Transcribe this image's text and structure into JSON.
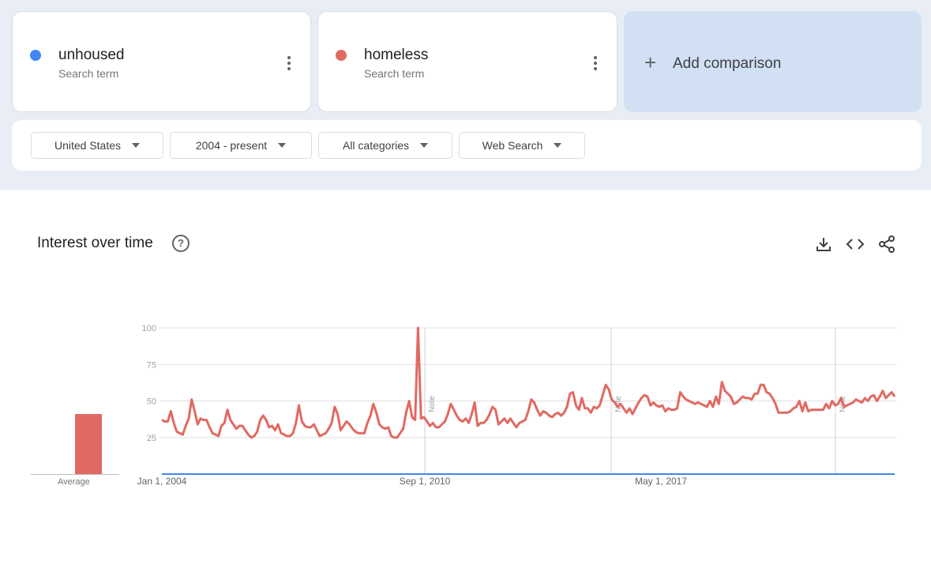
{
  "terms": [
    {
      "name": "unhoused",
      "sub": "Search term",
      "color": "#4285f4"
    },
    {
      "name": "homeless",
      "sub": "Search term",
      "color": "#e06a62"
    }
  ],
  "add_comparison": {
    "label": "Add comparison",
    "icon": "plus-icon"
  },
  "filters": {
    "region": "United States",
    "time": "2004 - present",
    "category": "All categories",
    "property": "Web Search"
  },
  "section": {
    "title": "Interest over time",
    "help_icon": "help-icon"
  },
  "toolbar": {
    "icons": [
      "download-icon",
      "embed-code-icon",
      "share-icon"
    ]
  },
  "average": {
    "label": "Average",
    "unhoused": 0,
    "homeless": 41
  },
  "chart_data": {
    "type": "line",
    "ylim": [
      0,
      100
    ],
    "yticks": [
      25,
      50,
      75,
      100
    ],
    "xticks": [
      "Jan 1, 2004",
      "Sep 1, 2010",
      "May 1, 2017"
    ],
    "notes": [
      "Note",
      "Note",
      "Note"
    ],
    "grid": true,
    "series": [
      {
        "name": "unhoused",
        "color": "#4285f4",
        "values": [
          0,
          0,
          0,
          0,
          0,
          0,
          0,
          0,
          0,
          0,
          0,
          0,
          0,
          0,
          0,
          0,
          0,
          0,
          0,
          0,
          0,
          0,
          0,
          0,
          0,
          0,
          0,
          0,
          0,
          0,
          0,
          0,
          0,
          0,
          0,
          0,
          0,
          0,
          0,
          0,
          0,
          0,
          0,
          0,
          0,
          0,
          0,
          0,
          0,
          0,
          0,
          0,
          0,
          0,
          0,
          0,
          0,
          0,
          0,
          0,
          0,
          0,
          0,
          0,
          0,
          0,
          0,
          0,
          0,
          0,
          0,
          0,
          0,
          0,
          0,
          0,
          0,
          0,
          0,
          0,
          0,
          0,
          0,
          0,
          0,
          0,
          0,
          0,
          0,
          0,
          0,
          0,
          0,
          0,
          0,
          0,
          0,
          0,
          0,
          0,
          0,
          0,
          0,
          0,
          0,
          0,
          0,
          0,
          0,
          0,
          0,
          0,
          0,
          0,
          0,
          0,
          0,
          0,
          0,
          0,
          0,
          0,
          0,
          0,
          0,
          0,
          0,
          0,
          0,
          0,
          0,
          0,
          0,
          0,
          0,
          0,
          0,
          0,
          0,
          0,
          0,
          0,
          0,
          0,
          0,
          0,
          0,
          0,
          0,
          0,
          0,
          0,
          0,
          0,
          0,
          0,
          0,
          0,
          0,
          0,
          0,
          0,
          0,
          0,
          0,
          0,
          0,
          0,
          0,
          0,
          0,
          0,
          0,
          0,
          0,
          0,
          0,
          0,
          0,
          0,
          0,
          0,
          0,
          0,
          0,
          0,
          0,
          0,
          0,
          0,
          0,
          0,
          0,
          0,
          0,
          0,
          0,
          0,
          0,
          0,
          0,
          0,
          0,
          0,
          0,
          0,
          0,
          0,
          0,
          0,
          0,
          0,
          0,
          0,
          0,
          0,
          0,
          0,
          0,
          0,
          0,
          0,
          0,
          0,
          0,
          0,
          0,
          0,
          0,
          0,
          0,
          0,
          0,
          0,
          0,
          0,
          0,
          0,
          0,
          0,
          0
        ]
      },
      {
        "name": "homeless",
        "color": "#e06a62",
        "values": [
          37,
          36,
          36,
          43,
          35,
          29,
          28,
          27,
          33,
          38,
          51,
          43,
          34,
          38,
          37,
          37,
          32,
          28,
          27,
          26,
          33,
          35,
          44,
          37,
          34,
          31,
          33,
          33,
          30,
          27,
          25,
          26,
          29,
          37,
          40,
          37,
          32,
          33,
          30,
          34,
          28,
          27,
          26,
          26,
          28,
          35,
          47,
          36,
          33,
          32,
          32,
          34,
          30,
          26,
          27,
          28,
          31,
          35,
          46,
          41,
          30,
          33,
          36,
          34,
          31,
          29,
          28,
          28,
          28,
          35,
          40,
          48,
          42,
          34,
          32,
          31,
          32,
          26,
          25,
          25,
          28,
          31,
          42,
          50,
          39,
          37,
          100,
          38,
          39,
          36,
          33,
          35,
          32,
          32,
          34,
          36,
          41,
          48,
          44,
          40,
          37,
          36,
          38,
          35,
          41,
          49,
          33,
          35,
          35,
          37,
          41,
          46,
          44,
          34,
          36,
          38,
          35,
          38,
          35,
          32,
          35,
          36,
          37,
          43,
          51,
          49,
          44,
          40,
          43,
          42,
          40,
          39,
          41,
          42,
          40,
          42,
          46,
          55,
          56,
          47,
          44,
          52,
          45,
          45,
          42,
          46,
          45,
          47,
          54,
          61,
          58,
          51,
          49,
          46,
          48,
          45,
          42,
          45,
          41,
          45,
          49,
          52,
          54,
          53,
          47,
          49,
          47,
          46,
          47,
          43,
          45,
          44,
          44,
          45,
          56,
          53,
          51,
          50,
          49,
          48,
          49,
          48,
          47,
          46,
          50,
          46,
          53,
          48,
          63,
          57,
          55,
          53,
          48,
          49,
          51,
          53,
          52,
          52,
          51,
          55,
          55,
          61,
          61,
          56,
          55,
          52,
          48,
          42,
          42,
          42,
          42,
          43,
          45,
          46,
          50,
          43,
          49,
          43,
          44,
          44,
          44,
          44,
          44,
          48,
          45,
          50,
          47,
          48,
          52,
          46,
          47,
          48,
          49,
          51,
          50,
          49,
          52,
          50,
          53,
          54,
          50,
          53,
          57,
          52,
          54,
          56,
          53
        ]
      }
    ]
  }
}
